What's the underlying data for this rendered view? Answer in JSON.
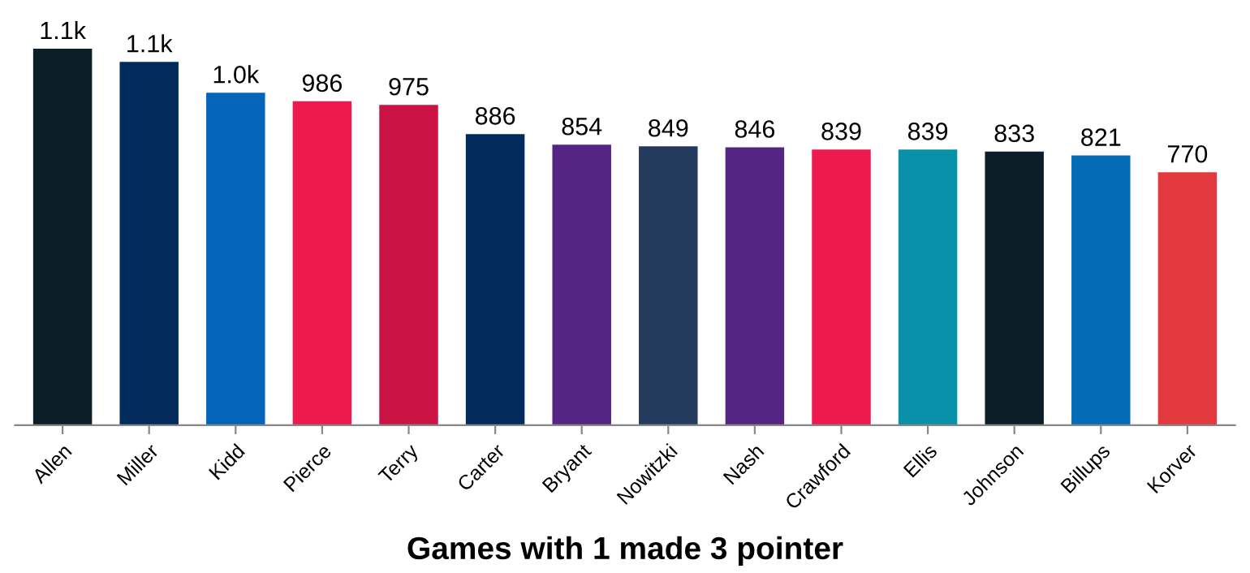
{
  "chart_data": {
    "type": "bar",
    "xlabel": "Games with 1 made 3 pointer",
    "categories": [
      "Allen",
      "Miller",
      "Kidd",
      "Pierce",
      "Terry",
      "Carter",
      "Bryant",
      "Nowitzki",
      "Nash",
      "Crawford",
      "Ellis",
      "Johnson",
      "Billups",
      "Korver"
    ],
    "values": [
      1146,
      1106,
      1012,
      986,
      975,
      886,
      854,
      849,
      846,
      839,
      839,
      833,
      821,
      770
    ],
    "value_labels": [
      "1.1k",
      "1.1k",
      "1.0k",
      "986",
      "975",
      "886",
      "854",
      "849",
      "846",
      "839",
      "839",
      "833",
      "821",
      "770"
    ],
    "colors": [
      "#0c1e28",
      "#022b5c",
      "#0465b8",
      "#ee1a4f",
      "#cb1444",
      "#022b5c",
      "#552583",
      "#253b5e",
      "#552583",
      "#ee1a4f",
      "#0891a8",
      "#0c1e28",
      "#046bb6",
      "#e23a3e"
    ],
    "grid": false,
    "legend": false
  }
}
